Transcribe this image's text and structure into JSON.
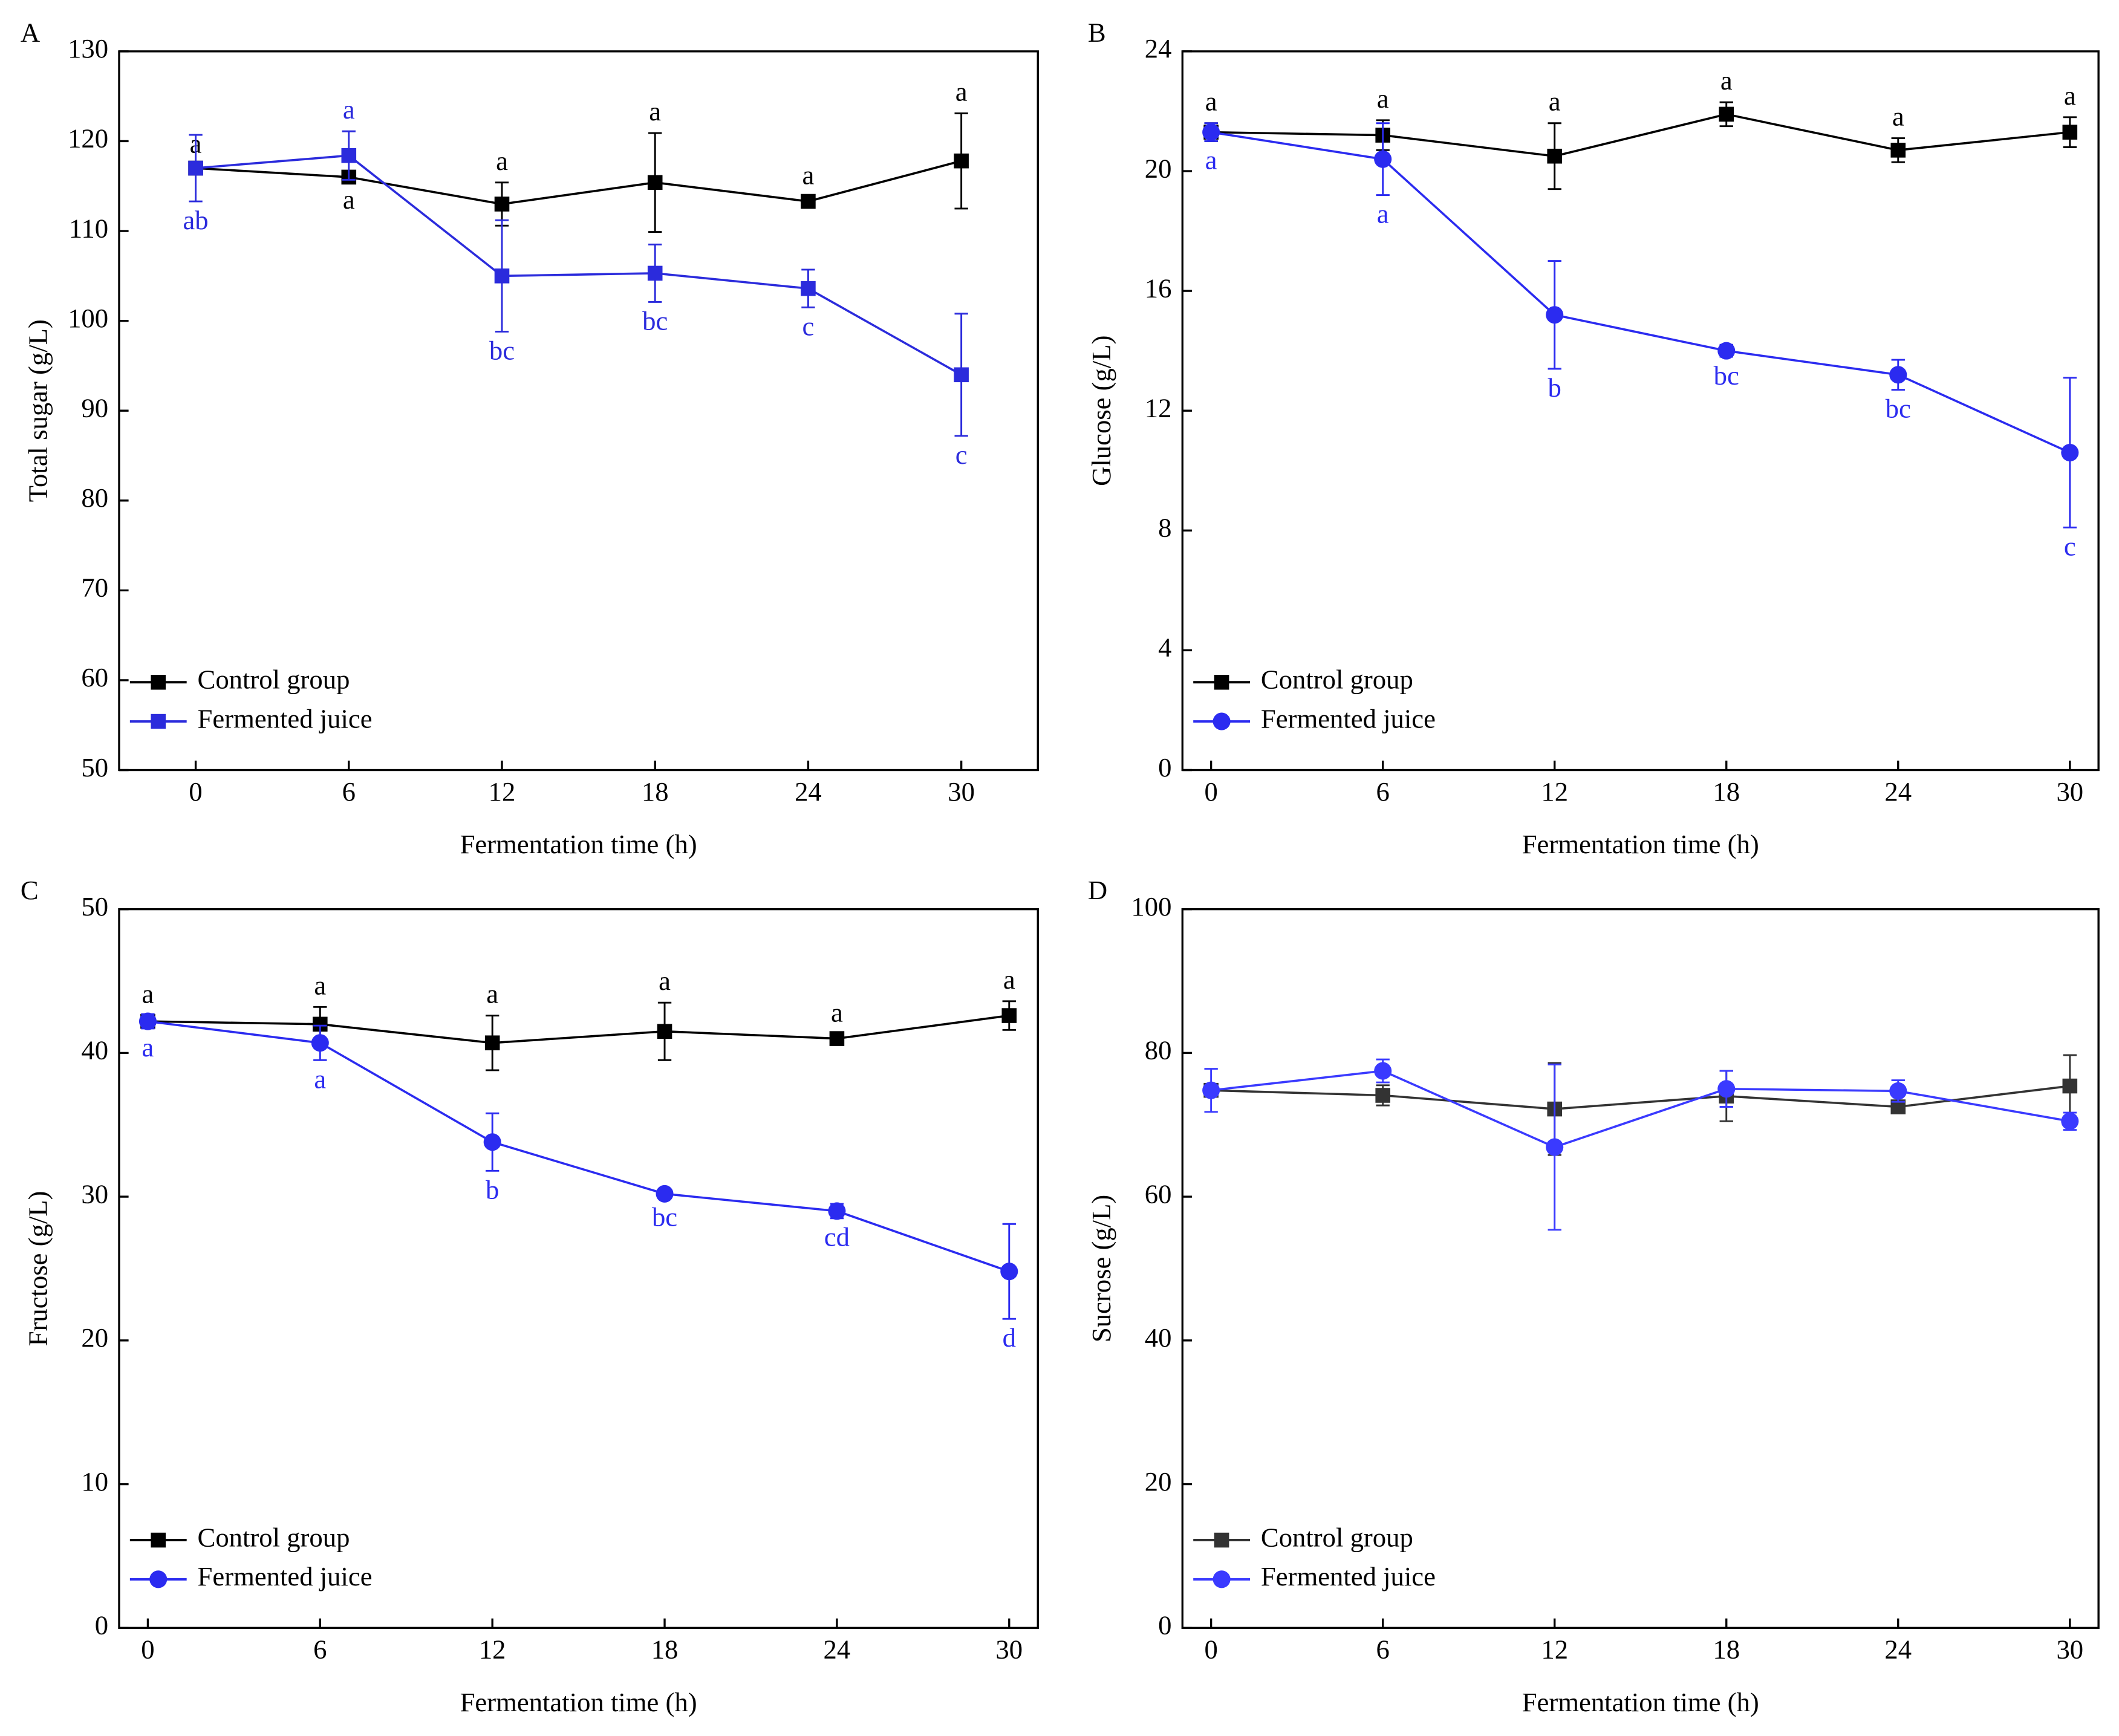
{
  "chart_data": [
    {
      "type": "line",
      "title": "A",
      "x_label": "Fermentation time (h)",
      "y_label": "Total sugar (g/L)",
      "x": [
        0,
        6,
        12,
        18,
        24,
        30
      ],
      "xlim": [
        -3,
        33
      ],
      "xticks": [
        0,
        6,
        12,
        18,
        24,
        30
      ],
      "ylim": [
        50,
        130
      ],
      "yticks": [
        50,
        60,
        70,
        80,
        90,
        100,
        110,
        120,
        130
      ],
      "legend": "lower left",
      "series": [
        {
          "name": "Control group",
          "color": "#000000",
          "marker": "square",
          "values": [
            117,
            116,
            113,
            115.4,
            113.3,
            117.8
          ],
          "errors": [
            0.3,
            0.4,
            2.4,
            5.5,
            0.5,
            5.3
          ],
          "letters": [
            "a",
            "a",
            "a",
            "a",
            "a",
            "a"
          ]
        },
        {
          "name": "Fermented juice",
          "color": "#2b2bdc",
          "marker": "square",
          "values": [
            117,
            118.4,
            105,
            105.3,
            103.6,
            94
          ],
          "errors": [
            3.7,
            2.7,
            6.2,
            3.2,
            2.1,
            6.8
          ],
          "letters": [
            "ab",
            "a",
            "bc",
            "bc",
            "c",
            "c"
          ]
        }
      ]
    },
    {
      "type": "line",
      "title": "B",
      "x_label": "Fermentation time (h)",
      "y_label": "Glucose (g/L)",
      "x": [
        0,
        6,
        12,
        18,
        24,
        30
      ],
      "xlim": [
        -1,
        31
      ],
      "xticks": [
        0,
        6,
        12,
        18,
        24,
        30
      ],
      "ylim": [
        0,
        24
      ],
      "yticks": [
        0,
        4,
        8,
        12,
        16,
        20,
        24
      ],
      "legend": "lower left",
      "series": [
        {
          "name": "Control group",
          "color": "#000000",
          "marker": "square",
          "values": [
            21.3,
            21.2,
            20.5,
            21.9,
            20.7,
            21.3
          ],
          "errors": [
            0.3,
            0.5,
            1.1,
            0.4,
            0.4,
            0.5
          ],
          "letters": [
            "a",
            "a",
            "a",
            "a",
            "a",
            "a"
          ]
        },
        {
          "name": "Fermented juice",
          "color": "#2b2bf0",
          "marker": "circle",
          "values": [
            21.3,
            20.4,
            15.2,
            14.0,
            13.2,
            10.6
          ],
          "errors": [
            0.3,
            1.2,
            1.8,
            0.2,
            0.5,
            2.5
          ],
          "letters": [
            "a",
            "a",
            "b",
            "bc",
            "bc",
            "c"
          ]
        }
      ]
    },
    {
      "type": "line",
      "title": "C",
      "x_label": "Fermentation time (h)",
      "y_label": "Fructose (g/L)",
      "x": [
        0,
        6,
        12,
        18,
        24,
        30
      ],
      "xlim": [
        -1,
        31
      ],
      "xticks": [
        0,
        6,
        12,
        18,
        24,
        30
      ],
      "ylim": [
        0,
        50
      ],
      "yticks": [
        0,
        10,
        20,
        30,
        40,
        50
      ],
      "legend": "lower left",
      "series": [
        {
          "name": "Control group",
          "color": "#000000",
          "marker": "square",
          "values": [
            42.2,
            42.0,
            40.7,
            41.5,
            41.0,
            42.6
          ],
          "errors": [
            0.4,
            1.2,
            1.9,
            2.0,
            0.3,
            1.0
          ],
          "letters": [
            "a",
            "a",
            "a",
            "a",
            "a",
            "a"
          ]
        },
        {
          "name": "Fermented juice",
          "color": "#2b2bf0",
          "marker": "circle",
          "values": [
            42.2,
            40.7,
            33.8,
            30.2,
            29.0,
            24.8
          ],
          "errors": [
            0.5,
            1.2,
            2.0,
            0.3,
            0.5,
            3.3
          ],
          "letters": [
            "a",
            "a",
            "b",
            "bc",
            "cd",
            "d"
          ]
        }
      ]
    },
    {
      "type": "line",
      "title": "D",
      "x_label": "Fermentation time (h)",
      "y_label": "Sucrose (g/L)",
      "x": [
        0,
        6,
        12,
        18,
        24,
        30
      ],
      "xlim": [
        -1,
        31
      ],
      "xticks": [
        0,
        6,
        12,
        18,
        24,
        30
      ],
      "ylim": [
        0,
        100
      ],
      "yticks": [
        0,
        20,
        40,
        60,
        80,
        100
      ],
      "legend": "lower left",
      "series": [
        {
          "name": "Control group",
          "color": "#333333",
          "marker": "square",
          "values": [
            74.8,
            74.1,
            72.2,
            74.0,
            72.5,
            75.4
          ],
          "errors": [
            0.5,
            1.4,
            6.4,
            3.5,
            0.5,
            4.3
          ]
        },
        {
          "name": "Fermented juice",
          "color": "#3a3aff",
          "marker": "circle",
          "values": [
            74.8,
            77.5,
            66.9,
            75.0,
            74.7,
            70.5
          ],
          "errors": [
            3.0,
            1.6,
            11.5,
            2.5,
            1.5,
            1.2
          ]
        }
      ]
    }
  ]
}
